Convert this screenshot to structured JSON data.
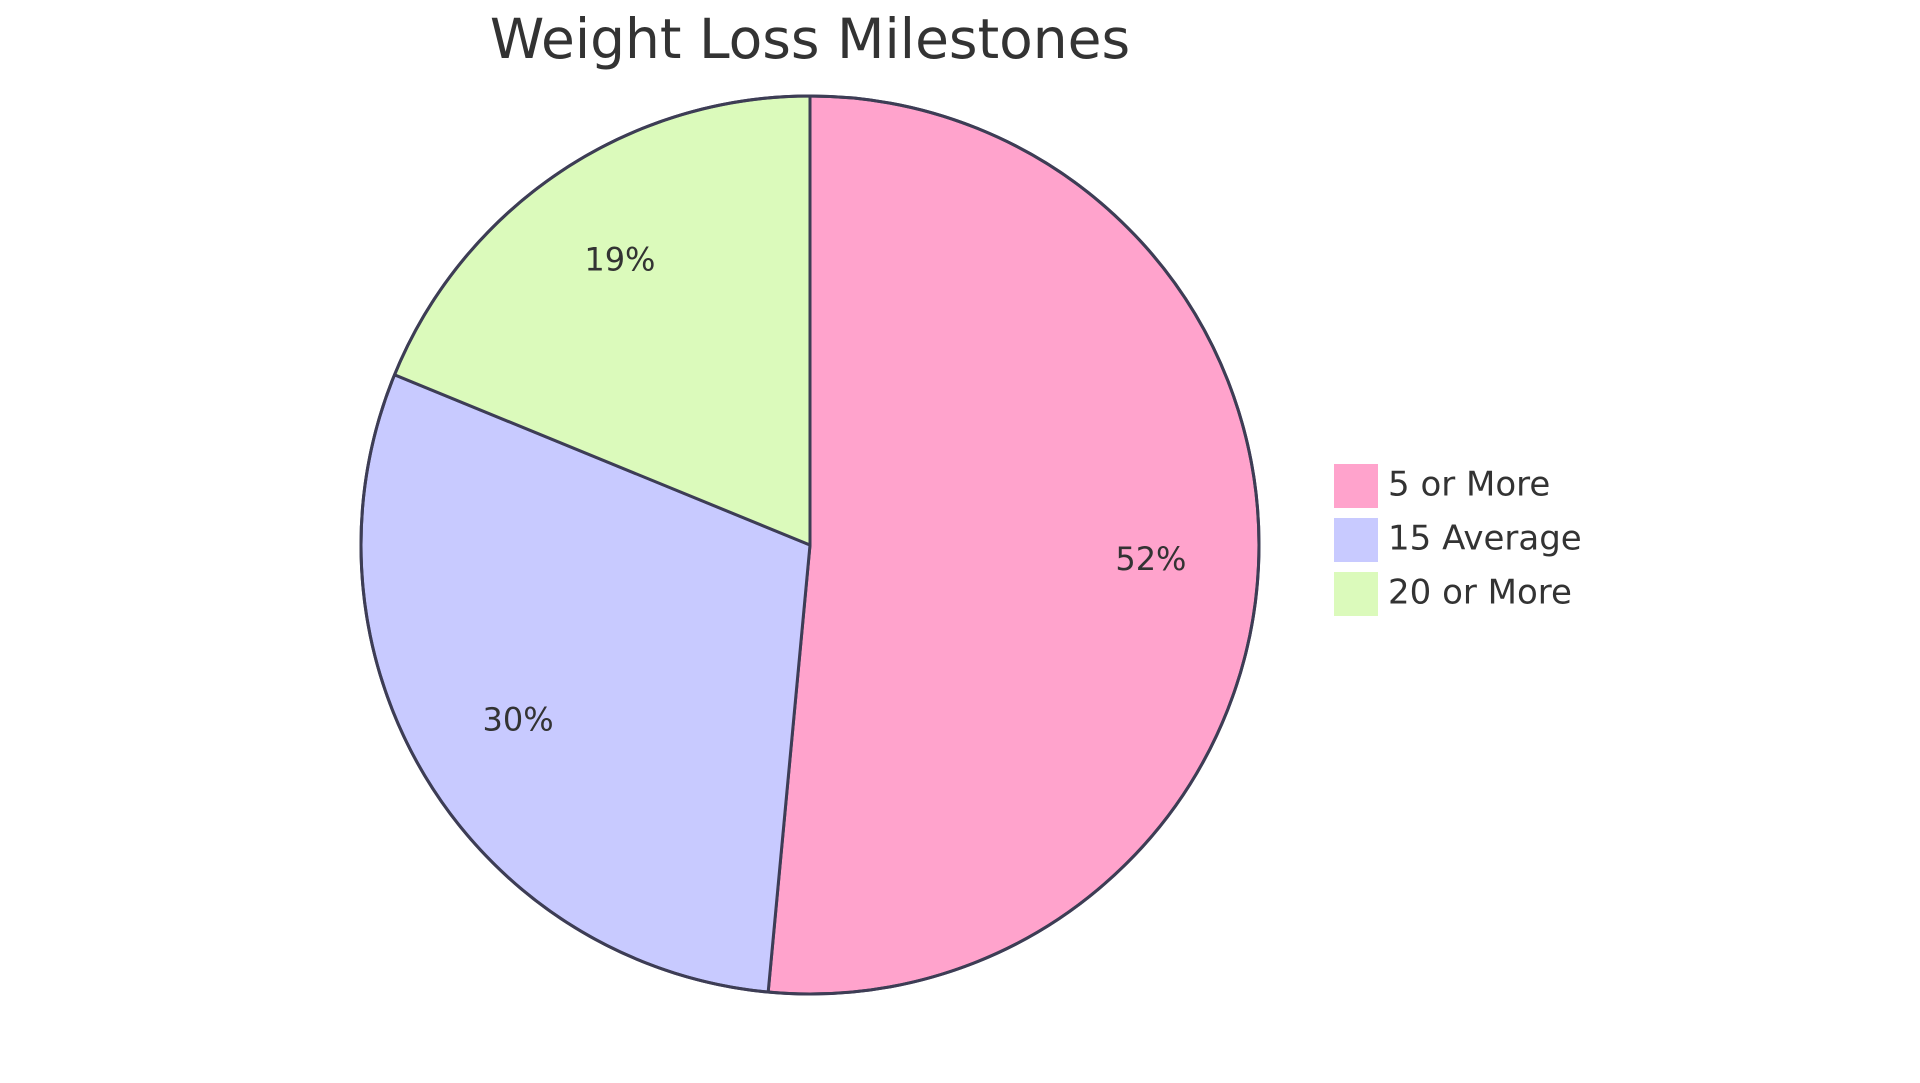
{
  "chart_data": {
    "type": "pie",
    "title": "Weight Loss Milestones",
    "categories": [
      "5 or More",
      "15 Average",
      "20 or More"
    ],
    "values": [
      52,
      30,
      19
    ],
    "value_labels": [
      "52%",
      "30%",
      "19%"
    ],
    "colors": [
      "#ffa3cc",
      "#c8caff",
      "#dbfabb"
    ],
    "outline_color": "#3d3d55",
    "legend_position": "right",
    "start_angle": "top, clockwise"
  }
}
